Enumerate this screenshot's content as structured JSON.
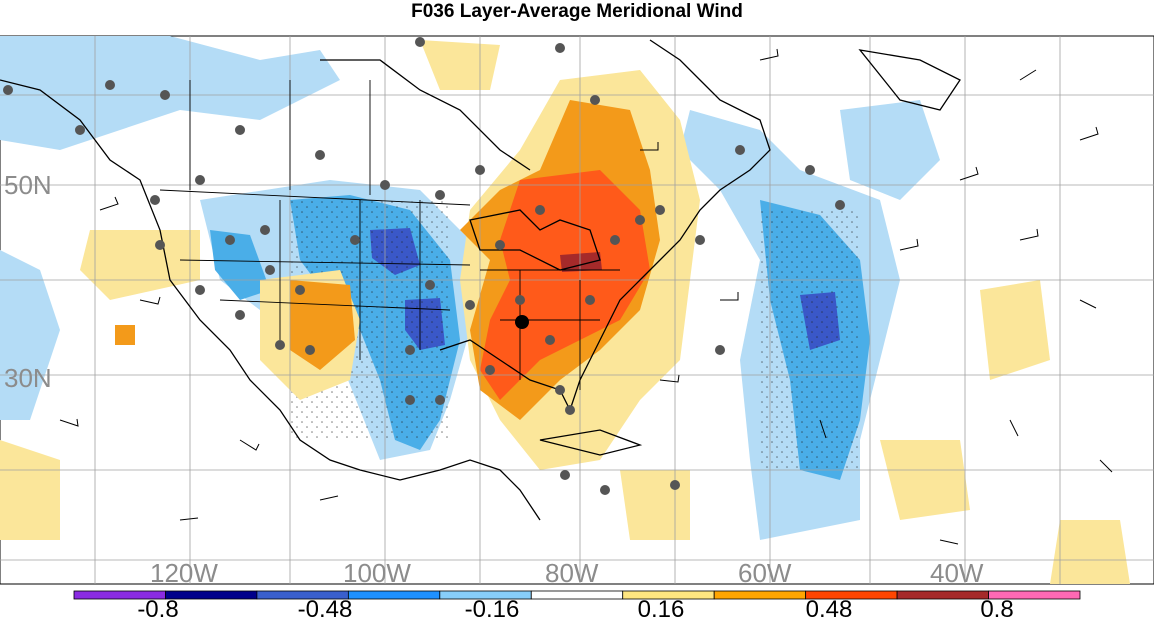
{
  "title": "F036 Layer-Average Meridional Wind",
  "latitude_labels": [
    "50N",
    "30N"
  ],
  "longitude_labels": [
    "120W",
    "100W",
    "80W",
    "60W",
    "40W"
  ],
  "colorbar": {
    "tick_labels": [
      "-0.8",
      "-0.48",
      "-0.16",
      "0.16",
      "0.48",
      "0.8"
    ],
    "colors": [
      "#8a2be2",
      "#00008b",
      "#3a5fcd",
      "#1e90ff",
      "#87cefa",
      "#ffffff",
      "#ffe680",
      "#ffa500",
      "#ff4500",
      "#a52a2a",
      "#ff69b4"
    ]
  },
  "colors": {
    "station_marker": "#555555",
    "highlight_marker": "#000000",
    "strong_positive": "#ff5a1a",
    "moderate_positive": "#f39a1a",
    "weak_positive": "#fbe69a",
    "weak_negative": "#b4dcf6",
    "moderate_negative": "#4aaee8",
    "strong_negative": "#3a58c8"
  }
}
